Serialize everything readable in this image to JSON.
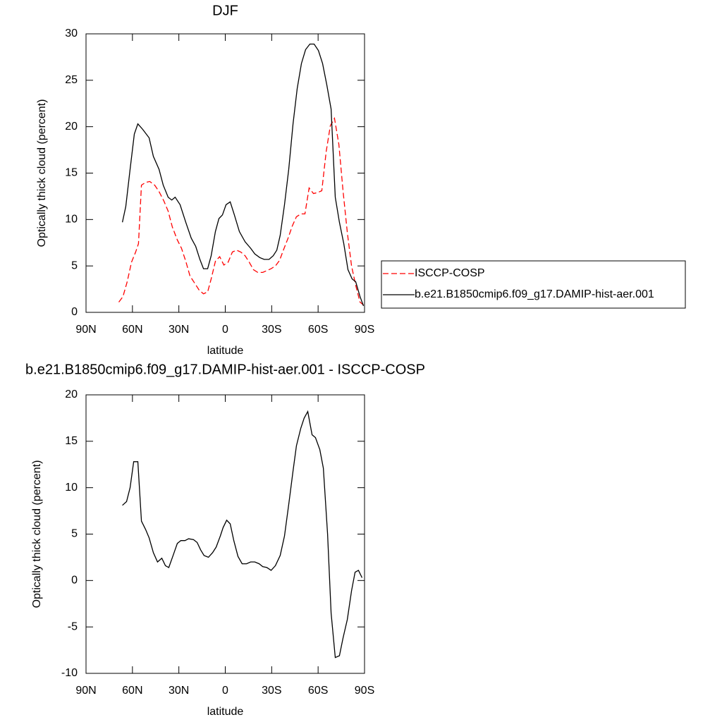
{
  "chart_data": [
    {
      "type": "line",
      "title": "DJF",
      "xlabel": "latitude",
      "ylabel": "Optically thick cloud (percent)",
      "xlim": [
        90,
        -90
      ],
      "ylim": [
        0,
        30
      ],
      "xticks": [
        {
          "value": 90,
          "label": "90N"
        },
        {
          "value": 60,
          "label": "60N"
        },
        {
          "value": 30,
          "label": "30N"
        },
        0,
        {
          "value": -30,
          "label": "30S"
        },
        {
          "value": -60,
          "label": "60S"
        },
        {
          "value": -90,
          "label": "90S"
        }
      ],
      "yticks": [
        0,
        5,
        10,
        15,
        20,
        25,
        30
      ],
      "legend": "right",
      "series": [
        {
          "name": "ISCCP-COSP",
          "color": "#ff0000",
          "dash": true,
          "x": [
            68.8,
            66.1,
            63.4,
            60.6,
            57.9,
            56.1,
            54.2,
            51.5,
            48.8,
            45.6,
            42.8,
            39.7,
            36.9,
            34.2,
            31,
            28.3,
            25.5,
            22.8,
            19.6,
            16.9,
            14.1,
            11.4,
            9.1,
            6.4,
            3.6,
            0.9,
            -1.8,
            -4.6,
            -7.3,
            -10,
            -12.8,
            -15.5,
            -18.2,
            -21,
            -24.2,
            -26.9,
            -29.6,
            -32.4,
            -35.1,
            -37.8,
            -40.6,
            -43.3,
            -46,
            -48.8,
            -51.5,
            -54.2,
            -57,
            -59.7,
            -62.4,
            -65.2,
            -67.9,
            -70.6,
            -73.4,
            -76.1,
            -78.9,
            -81.6,
            -84.3,
            -87.1,
            -89.3
          ],
          "values": [
            1.1,
            1.7,
            3.3,
            5.4,
            6.5,
            7.4,
            13.7,
            14,
            14.1,
            13.7,
            13,
            12,
            10.9,
            9.2,
            7.8,
            6.9,
            5.5,
            3.9,
            3.1,
            2.4,
            2,
            2.2,
            3.6,
            5.5,
            6,
            5.1,
            5.4,
            6.5,
            6.7,
            6.5,
            6.1,
            5.4,
            4.6,
            4.3,
            4.3,
            4.5,
            4.7,
            5,
            5.6,
            6.8,
            8,
            9.3,
            10.3,
            10.6,
            10.6,
            13.4,
            12.8,
            12.9,
            13.1,
            17.3,
            20.1,
            20.9,
            18.1,
            13.1,
            8.6,
            5,
            2.9,
            1.1,
            0.8
          ]
        },
        {
          "name": "b.e21.B1850cmip6.f09_g17.DAMIP-hist-aer.001",
          "color": "#000000",
          "dash": false,
          "x": [
            66.5,
            64.3,
            61.5,
            58.8,
            56.5,
            53.3,
            49.2,
            46.5,
            42.8,
            40.1,
            36.9,
            34.6,
            32.4,
            29.2,
            25.5,
            22,
            19.1,
            16.4,
            14.1,
            11.4,
            9.1,
            6.4,
            4.1,
            1.8,
            -0.5,
            -3.2,
            -5.9,
            -9.1,
            -12.8,
            -16.4,
            -19.1,
            -22.3,
            -25.1,
            -28.3,
            -31,
            -33.3,
            -35.5,
            -38.3,
            -41,
            -43.8,
            -46.5,
            -49.2,
            -51.9,
            -54.7,
            -57.4,
            -60.2,
            -62.9,
            -65.6,
            -68.4,
            -71.1,
            -73.8,
            -76.6,
            -79.3,
            -82,
            -84.3,
            -87.1,
            -89.3
          ],
          "values": [
            9.7,
            11.4,
            15.4,
            19.2,
            20.3,
            19.7,
            18.8,
            16.8,
            15.4,
            13.7,
            12.4,
            12.1,
            12.4,
            11.6,
            9.7,
            8,
            7.1,
            5.7,
            4.7,
            4.7,
            6.1,
            8.7,
            10.1,
            10.5,
            11.6,
            11.9,
            10.5,
            8.7,
            7.6,
            6.9,
            6.3,
            5.9,
            5.7,
            5.7,
            6.1,
            6.7,
            8.3,
            11.6,
            15.4,
            20.3,
            24.1,
            26.8,
            28.3,
            28.9,
            28.9,
            28.2,
            26.8,
            24.5,
            21.9,
            12.4,
            9.7,
            7.4,
            4.6,
            3.6,
            3.3,
            1.7,
            0.7
          ]
        }
      ]
    },
    {
      "type": "line",
      "title": "b.e21.B1850cmip6.f09_g17.DAMIP-hist-aer.001 - ISCCP-COSP",
      "xlabel": "latitude",
      "ylabel": "Optically thick cloud (percent)",
      "xlim": [
        90,
        -90
      ],
      "ylim": [
        -10,
        20
      ],
      "xticks": [
        {
          "value": 90,
          "label": "90N"
        },
        {
          "value": 60,
          "label": "60N"
        },
        {
          "value": 30,
          "label": "30N"
        },
        0,
        {
          "value": -30,
          "label": "30S"
        },
        {
          "value": -60,
          "label": "60S"
        },
        {
          "value": -90,
          "label": "90S"
        }
      ],
      "yticks": [
        -10,
        -5,
        0,
        5,
        10,
        15,
        20
      ],
      "series": [
        {
          "color": "#000000",
          "dash": false,
          "x": [
            66.5,
            63.8,
            61.5,
            59.2,
            56.5,
            54.2,
            51.5,
            49.2,
            46.5,
            43.8,
            41,
            38.7,
            36.5,
            33.7,
            31,
            28.7,
            26,
            23.7,
            20.5,
            18.2,
            15.9,
            13.7,
            10.9,
            8.2,
            5.9,
            3.2,
            1.4,
            -0.9,
            -3.2,
            -5.5,
            -8.2,
            -10.9,
            -13.7,
            -16.4,
            -19.1,
            -21.9,
            -24.2,
            -26.9,
            -29.6,
            -32.4,
            -35.5,
            -38.3,
            -41,
            -43.8,
            -46,
            -48.8,
            -51,
            -53.3,
            -56.1,
            -58.3,
            -61.1,
            -63.4,
            -66.1,
            -68.4,
            -71.1,
            -73.8,
            -76.1,
            -78.9,
            -81.6,
            -83.9,
            -86.1,
            -88.4
          ],
          "values": [
            8.1,
            8.5,
            10,
            12.8,
            12.8,
            6.4,
            5.5,
            4.6,
            3,
            2,
            2.4,
            1.6,
            1.4,
            2.7,
            4,
            4.3,
            4.3,
            4.5,
            4.4,
            4.1,
            3.3,
            2.7,
            2.5,
            3,
            3.6,
            4.8,
            5.7,
            6.5,
            6.1,
            4.3,
            2.6,
            1.8,
            1.8,
            2,
            2,
            1.8,
            1.5,
            1.4,
            1.1,
            1.6,
            2.7,
            4.8,
            8.2,
            11.8,
            14.5,
            16.4,
            17.5,
            18.2,
            15.7,
            15.4,
            14.1,
            12.1,
            5,
            -3.5,
            -8.3,
            -8.1,
            -6.2,
            -4.2,
            -1.1,
            0.9,
            1.1,
            0.3
          ]
        }
      ]
    }
  ]
}
